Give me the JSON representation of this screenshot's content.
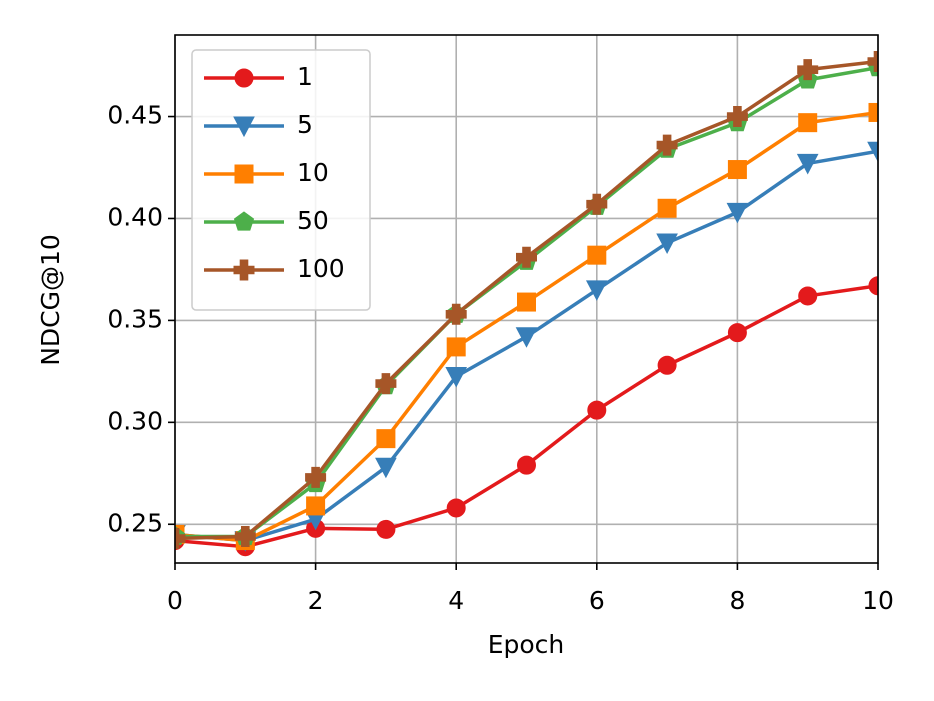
{
  "chart_data": {
    "type": "line",
    "xlabel": "Epoch",
    "ylabel": "NDCG@10",
    "x": [
      0,
      1,
      2,
      3,
      4,
      5,
      6,
      7,
      8,
      9,
      10
    ],
    "series": [
      {
        "name": "1",
        "color": "#e31a1c",
        "marker": "circle",
        "values": [
          0.242,
          0.239,
          0.248,
          0.2475,
          0.258,
          0.279,
          0.306,
          0.328,
          0.344,
          0.362,
          0.367
        ]
      },
      {
        "name": "5",
        "color": "#377eb8",
        "marker": "triangle-down",
        "values": [
          0.245,
          0.242,
          0.2525,
          0.278,
          0.3225,
          0.342,
          0.365,
          0.388,
          0.403,
          0.427,
          0.433
        ]
      },
      {
        "name": "10",
        "color": "#ff7f00",
        "marker": "square",
        "values": [
          0.245,
          0.242,
          0.259,
          0.292,
          0.337,
          0.359,
          0.382,
          0.405,
          0.424,
          0.447,
          0.452
        ]
      },
      {
        "name": "50",
        "color": "#4daf4a",
        "marker": "pentagon",
        "values": [
          0.244,
          0.244,
          0.27,
          0.318,
          0.353,
          0.379,
          0.406,
          0.434,
          0.447,
          0.468,
          0.474
        ]
      },
      {
        "name": "100",
        "color": "#a65628",
        "marker": "plus",
        "values": [
          0.243,
          0.244,
          0.273,
          0.319,
          0.353,
          0.381,
          0.407,
          0.436,
          0.45,
          0.473,
          0.477
        ]
      }
    ],
    "xlim": [
      0,
      10
    ],
    "xticks": [
      0,
      2,
      4,
      6,
      8,
      10
    ],
    "ylim": [
      0.231,
      0.49
    ],
    "yticks": [
      0.25,
      {
        "value": 0.3,
        "label": "0.30"
      },
      0.35,
      {
        "value": 0.4,
        "label": "0.40"
      },
      0.45
    ],
    "grid": true,
    "legend": "upper-left"
  }
}
